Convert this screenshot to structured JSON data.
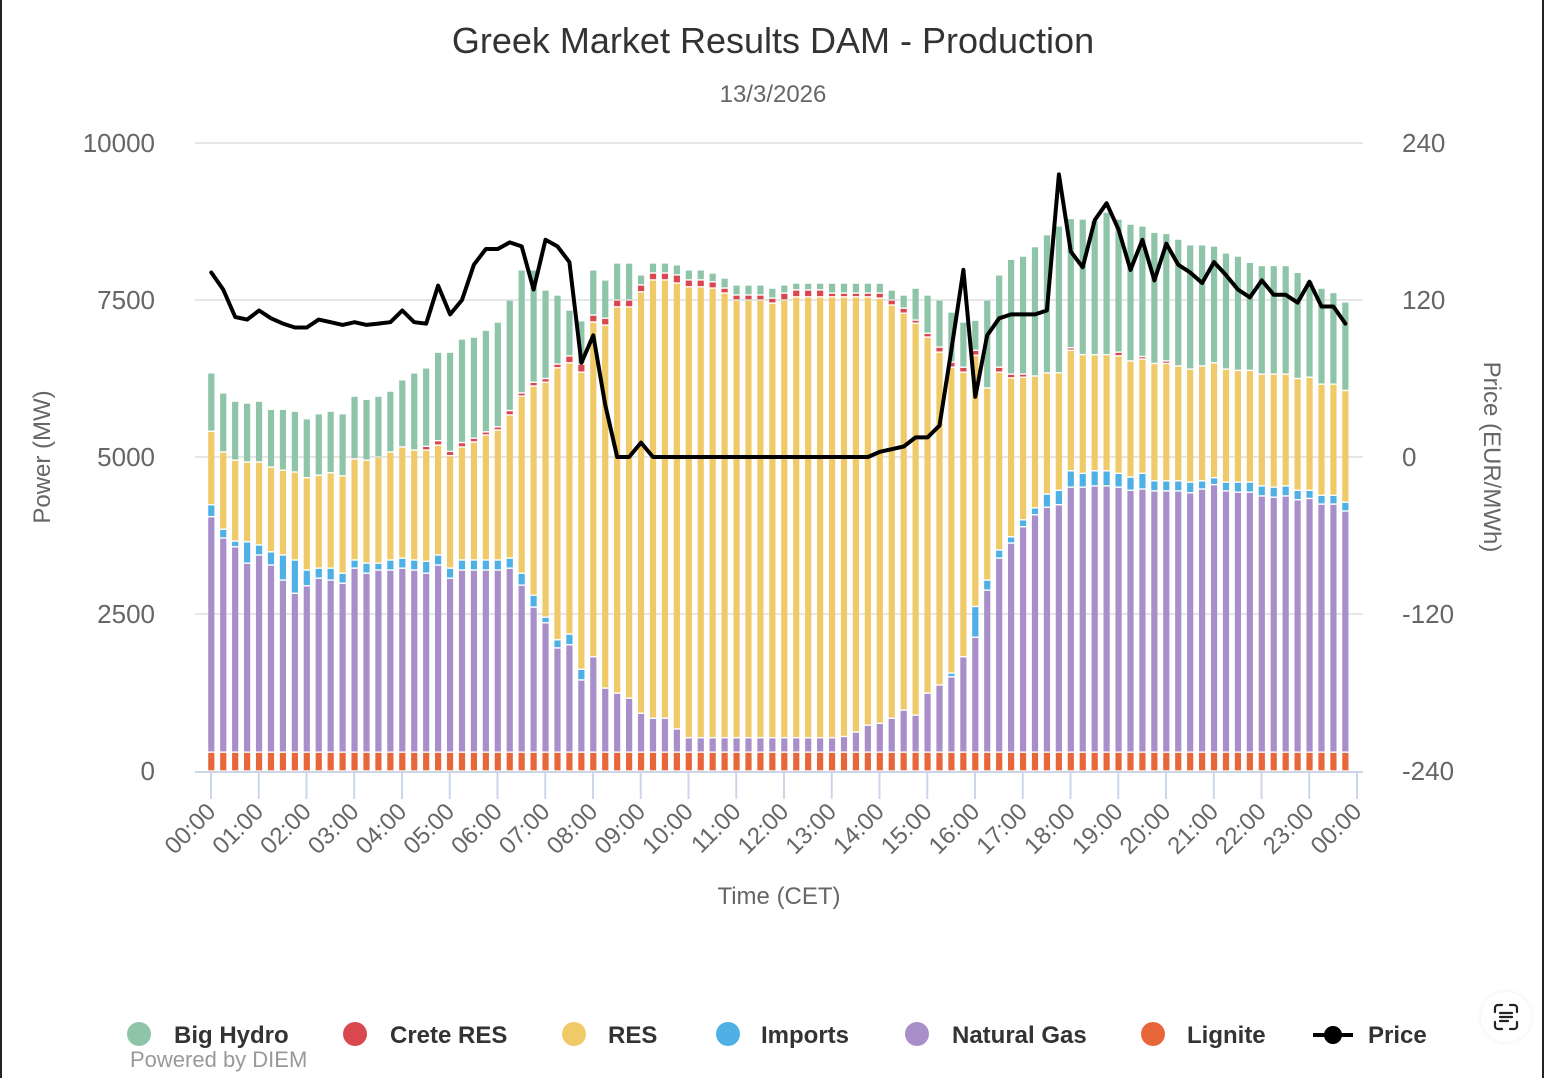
{
  "chart_data": {
    "type": "bar",
    "stacked": true,
    "title": "Greek Market Results DAM - Production",
    "subtitle": "13/3/2026",
    "xlabel": "Time (CET)",
    "ylabel": "Power (MW)",
    "y2label": "Price (EUR/MWh)",
    "ylim": [
      0,
      10000
    ],
    "y2lim": [
      -240,
      240
    ],
    "yticks": [
      "0",
      "2500",
      "5000",
      "7500",
      "10000"
    ],
    "y2ticks": [
      "-240",
      "-120",
      "0",
      "120",
      "240"
    ],
    "xticks": [
      "00:00",
      "01:00",
      "02:00",
      "03:00",
      "04:00",
      "05:00",
      "06:00",
      "07:00",
      "08:00",
      "09:00",
      "10:00",
      "11:00",
      "12:00",
      "13:00",
      "14:00",
      "15:00",
      "16:00",
      "17:00",
      "18:00",
      "19:00",
      "20:00",
      "21:00",
      "22:00",
      "23:00",
      "00:00"
    ],
    "interval_minutes": 15,
    "grid": true,
    "legend_position": "bottom",
    "series": [
      {
        "name": "Lignite",
        "color": "#e8673a",
        "values": [
          300,
          300,
          300,
          300,
          300,
          300,
          300,
          300,
          300,
          300,
          300,
          300,
          300,
          300,
          300,
          300,
          300,
          300,
          300,
          300,
          300,
          300,
          300,
          300,
          300,
          300,
          300,
          300,
          300,
          300,
          300,
          300,
          300,
          300,
          300,
          300,
          300,
          300,
          300,
          300,
          300,
          300,
          300,
          300,
          300,
          300,
          300,
          300,
          300,
          300,
          300,
          300,
          300,
          300,
          300,
          300,
          300,
          300,
          300,
          300,
          300,
          300,
          300,
          300,
          300,
          300,
          300,
          300,
          300,
          300,
          300,
          300,
          300,
          300,
          300,
          300,
          300,
          300,
          300,
          300,
          300,
          300,
          300,
          300,
          300,
          300,
          300,
          300,
          300,
          300,
          300,
          300,
          300,
          300,
          300,
          300
        ]
      },
      {
        "name": "Natural Gas",
        "color": "#a98fca",
        "values": [
          3750,
          3410,
          3270,
          3010,
          3140,
          2980,
          2740,
          2530,
          2650,
          2770,
          2740,
          2690,
          2930,
          2850,
          2900,
          2900,
          2930,
          2900,
          2850,
          2980,
          2770,
          2900,
          2900,
          2900,
          2900,
          2930,
          2660,
          2310,
          2060,
          1660,
          1710,
          1150,
          1520,
          1020,
          940,
          860,
          620,
          540,
          540,
          370,
          230,
          230,
          230,
          230,
          230,
          230,
          230,
          230,
          230,
          230,
          230,
          230,
          230,
          250,
          320,
          430,
          460,
          540,
          670,
          590,
          940,
          1070,
          1200,
          1520,
          1830,
          2580,
          3090,
          3330,
          3590,
          3780,
          3900,
          3940,
          4220,
          4220,
          4240,
          4240,
          4220,
          4170,
          4190,
          4160,
          4160,
          4160,
          4130,
          4190,
          4260,
          4160,
          4140,
          4140,
          4080,
          4060,
          4080,
          4020,
          4040,
          3950,
          3950,
          3840
        ]
      },
      {
        "name": "Imports",
        "color": "#4fb0e6",
        "values": [
          190,
          140,
          90,
          340,
          160,
          210,
          400,
          530,
          250,
          160,
          190,
          160,
          130,
          160,
          110,
          160,
          160,
          160,
          190,
          160,
          160,
          160,
          160,
          160,
          160,
          160,
          190,
          190,
          90,
          130,
          170,
          170,
          0,
          0,
          0,
          0,
          0,
          0,
          0,
          0,
          0,
          0,
          0,
          0,
          0,
          0,
          0,
          0,
          0,
          0,
          0,
          0,
          0,
          0,
          0,
          0,
          0,
          0,
          0,
          0,
          0,
          0,
          60,
          0,
          490,
          160,
          130,
          100,
          110,
          110,
          210,
          230,
          260,
          220,
          240,
          240,
          220,
          210,
          250,
          160,
          160,
          160,
          170,
          130,
          110,
          140,
          160,
          160,
          160,
          160,
          160,
          150,
          130,
          140,
          140,
          140
        ]
      },
      {
        "name": "RES",
        "color": "#f0ca68",
        "values": [
          1170,
          1230,
          1290,
          1270,
          1320,
          1350,
          1350,
          1400,
          1470,
          1480,
          1520,
          1550,
          1610,
          1640,
          1690,
          1720,
          1770,
          1750,
          1770,
          1750,
          1790,
          1800,
          1880,
          1990,
          2070,
          2280,
          2820,
          3330,
          3740,
          4330,
          4320,
          4730,
          5330,
          5780,
          6150,
          6230,
          6710,
          6980,
          6980,
          7100,
          7180,
          7180,
          7160,
          7080,
          6970,
          6970,
          6970,
          6920,
          6970,
          7020,
          7020,
          7020,
          7020,
          7000,
          6930,
          6820,
          6770,
          6580,
          6320,
          6240,
          5670,
          5300,
          4870,
          4530,
          4000,
          3060,
          2830,
          2530,
          2270,
          2100,
          1930,
          1870,
          1920,
          1890,
          1850,
          1850,
          1870,
          1850,
          1820,
          1870,
          1870,
          1830,
          1800,
          1830,
          1830,
          1800,
          1780,
          1780,
          1780,
          1800,
          1780,
          1780,
          1800,
          1770,
          1770,
          1780
        ]
      },
      {
        "name": "Crete RES",
        "color": "#d9474f",
        "values": [
          0,
          0,
          0,
          0,
          0,
          0,
          0,
          0,
          0,
          0,
          0,
          0,
          0,
          0,
          0,
          0,
          0,
          0,
          60,
          70,
          70,
          70,
          60,
          50,
          50,
          70,
          50,
          60,
          60,
          60,
          110,
          130,
          110,
          110,
          110,
          110,
          110,
          110,
          110,
          130,
          110,
          110,
          100,
          80,
          80,
          80,
          80,
          80,
          110,
          110,
          110,
          110,
          60,
          60,
          60,
          60,
          80,
          80,
          80,
          50,
          60,
          80,
          80,
          80,
          80,
          0,
          80,
          60,
          50,
          0,
          0,
          0,
          40,
          0,
          0,
          0,
          60,
          0,
          40,
          0,
          40,
          0,
          0,
          0,
          0,
          0,
          0,
          0,
          0,
          0,
          0,
          0,
          0,
          0,
          0,
          0
        ]
      },
      {
        "name": "Big Hydro",
        "color": "#8ec4a8",
        "values": [
          930,
          940,
          940,
          940,
          970,
          920,
          970,
          970,
          940,
          980,
          980,
          990,
          1000,
          970,
          970,
          970,
          1070,
          1230,
          1250,
          1410,
          1580,
          1650,
          1610,
          1620,
          1670,
          1760,
          1960,
          1790,
          1410,
          1100,
          730,
          690,
          720,
          610,
          590,
          590,
          160,
          160,
          160,
          160,
          160,
          160,
          140,
          160,
          160,
          160,
          160,
          160,
          130,
          110,
          110,
          110,
          160,
          160,
          160,
          160,
          160,
          160,
          210,
          510,
          610,
          750,
          800,
          720,
          480,
          1400,
          1470,
          1830,
          1880,
          2060,
          2200,
          2340,
          2060,
          2160,
          2140,
          2270,
          2120,
          2180,
          2080,
          2090,
          2030,
          2020,
          1980,
          1930,
          1860,
          1850,
          1820,
          1720,
          1730,
          1730,
          1730,
          1690,
          1540,
          1530,
          1460,
          1410
        ]
      },
      {
        "name": "Price",
        "color": "#000000",
        "type": "line",
        "axis": "right",
        "values": [
          141,
          128,
          107,
          105,
          112,
          106,
          102,
          99,
          99,
          105,
          103,
          101,
          103,
          101,
          102,
          103,
          112,
          103,
          102,
          131,
          109,
          120,
          147,
          159,
          159,
          164,
          161,
          128,
          166,
          161,
          149,
          72,
          93,
          40,
          0,
          0,
          11,
          0,
          0,
          0,
          0,
          0,
          0,
          0,
          0,
          0,
          0,
          0,
          0,
          0,
          0,
          0,
          0,
          0,
          0,
          0,
          4,
          6,
          8,
          15,
          15,
          24,
          82,
          143,
          46,
          93,
          106,
          109,
          109,
          109,
          112,
          216,
          157,
          145,
          181,
          194,
          174,
          143,
          166,
          135,
          163,
          147,
          141,
          133,
          149,
          139,
          128,
          122,
          135,
          124,
          124,
          118,
          134,
          115,
          115,
          102
        ]
      }
    ],
    "legend": [
      {
        "name": "Big Hydro",
        "color": "#8ec4a8",
        "symbol": "circle"
      },
      {
        "name": "Crete RES",
        "color": "#d9474f",
        "symbol": "circle"
      },
      {
        "name": "RES",
        "color": "#f0ca68",
        "symbol": "circle"
      },
      {
        "name": "Imports",
        "color": "#4fb0e6",
        "symbol": "circle"
      },
      {
        "name": "Natural Gas",
        "color": "#a98fca",
        "symbol": "circle"
      },
      {
        "name": "Lignite",
        "color": "#e8673a",
        "symbol": "circle"
      },
      {
        "name": "Price",
        "color": "#000000",
        "symbol": "line"
      }
    ]
  },
  "credits": "Powered by DIEM",
  "scan_button": {
    "icon": "scan-text-icon"
  }
}
